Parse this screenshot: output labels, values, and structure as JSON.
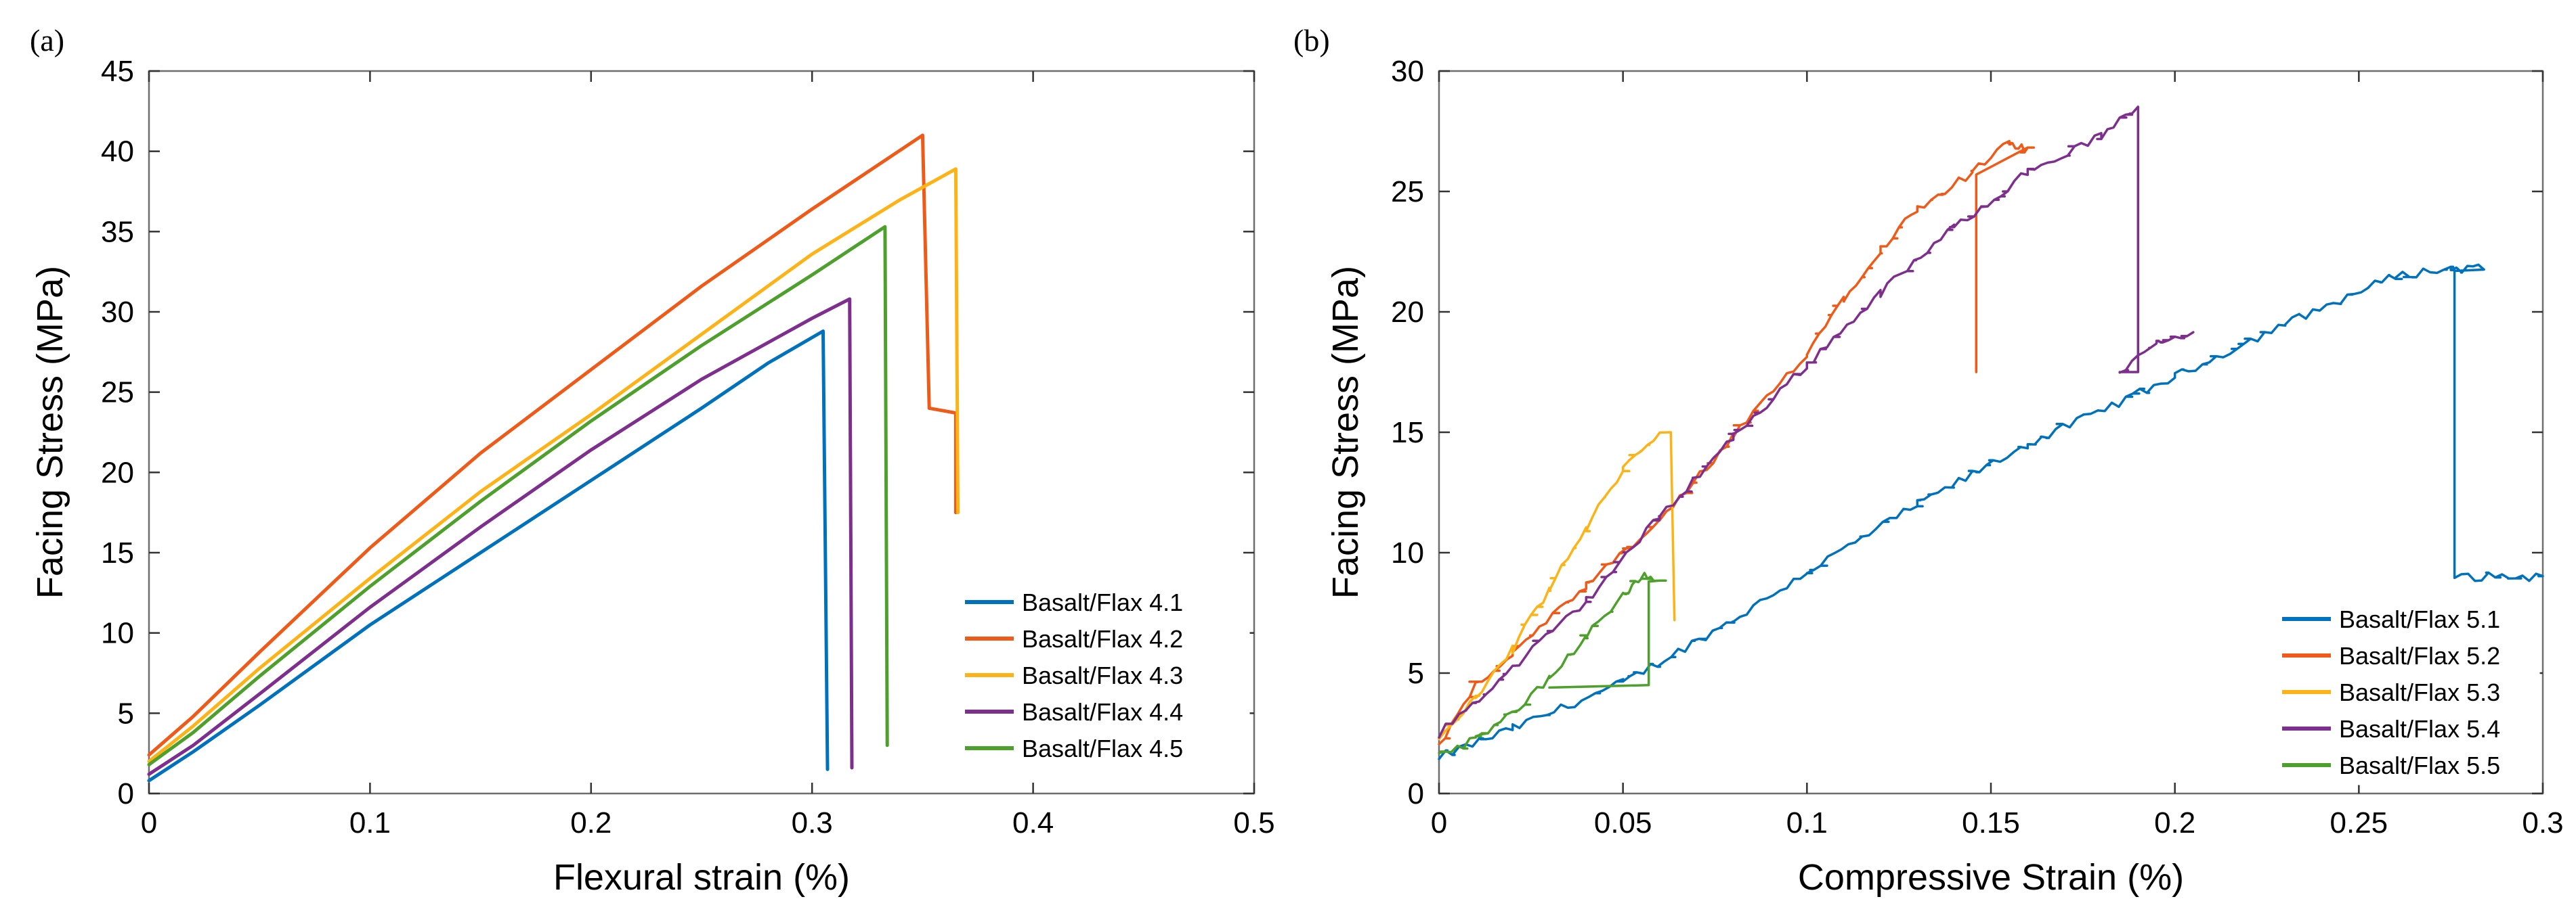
{
  "colors": {
    "blue": "#0072BD",
    "orange": "#F05A18",
    "yellow": "#FDB316",
    "purple": "#7E2F8E",
    "green": "#4DA02B"
  },
  "chart_data": [
    {
      "panel_label": "(a)",
      "type": "line",
      "title": "",
      "xlabel": "Flexural strain (%)",
      "ylabel": "Facing Stress (MPa)",
      "xlim": [
        0,
        0.5
      ],
      "ylim": [
        0,
        45
      ],
      "xticks": [
        0,
        0.1,
        0.2,
        0.3,
        0.4,
        0.5
      ],
      "xtick_labels": [
        "0",
        "0.1",
        "0.2",
        "0.3",
        "0.4",
        "0.5"
      ],
      "yticks": [
        0,
        5,
        10,
        15,
        20,
        25,
        30,
        35,
        40,
        45
      ],
      "ytick_labels": [
        "0",
        "5",
        "10",
        "15",
        "20",
        "25",
        "30",
        "35",
        "40",
        "45"
      ],
      "legend_position": "bottom-right",
      "series": [
        {
          "name": "Basalt/Flax 4.1",
          "color": "blue",
          "noisy": false,
          "points": [
            [
              0,
              0.8
            ],
            [
              0.02,
              2.6
            ],
            [
              0.05,
              5.5
            ],
            [
              0.1,
              10.5
            ],
            [
              0.15,
              15.0
            ],
            [
              0.2,
              19.5
            ],
            [
              0.25,
              24.0
            ],
            [
              0.28,
              26.8
            ],
            [
              0.305,
              28.8
            ],
            [
              0.307,
              1.5
            ]
          ]
        },
        {
          "name": "Basalt/Flax 4.2",
          "color": "orange",
          "noisy": false,
          "points": [
            [
              0,
              2.4
            ],
            [
              0.02,
              4.8
            ],
            [
              0.05,
              8.8
            ],
            [
              0.1,
              15.3
            ],
            [
              0.15,
              21.2
            ],
            [
              0.2,
              26.4
            ],
            [
              0.25,
              31.6
            ],
            [
              0.3,
              36.4
            ],
            [
              0.35,
              41.0
            ],
            [
              0.353,
              24.0
            ],
            [
              0.365,
              23.7
            ],
            [
              0.365,
              17.5
            ]
          ]
        },
        {
          "name": "Basalt/Flax 4.3",
          "color": "yellow",
          "noisy": false,
          "points": [
            [
              0,
              2.0
            ],
            [
              0.02,
              4.2
            ],
            [
              0.05,
              7.8
            ],
            [
              0.1,
              13.4
            ],
            [
              0.15,
              18.8
            ],
            [
              0.2,
              23.6
            ],
            [
              0.25,
              28.6
            ],
            [
              0.3,
              33.6
            ],
            [
              0.34,
              37.0
            ],
            [
              0.365,
              38.9
            ],
            [
              0.366,
              17.5
            ]
          ]
        },
        {
          "name": "Basalt/Flax 4.4",
          "color": "purple",
          "noisy": false,
          "points": [
            [
              0,
              1.2
            ],
            [
              0.02,
              3.0
            ],
            [
              0.05,
              6.2
            ],
            [
              0.1,
              11.6
            ],
            [
              0.15,
              16.6
            ],
            [
              0.2,
              21.4
            ],
            [
              0.25,
              25.8
            ],
            [
              0.3,
              29.6
            ],
            [
              0.317,
              30.8
            ],
            [
              0.318,
              1.6
            ]
          ]
        },
        {
          "name": "Basalt/Flax 4.5",
          "color": "green",
          "noisy": false,
          "points": [
            [
              0,
              1.8
            ],
            [
              0.02,
              3.8
            ],
            [
              0.05,
              7.3
            ],
            [
              0.1,
              12.9
            ],
            [
              0.15,
              18.2
            ],
            [
              0.2,
              23.2
            ],
            [
              0.25,
              27.9
            ],
            [
              0.3,
              32.3
            ],
            [
              0.333,
              35.3
            ],
            [
              0.334,
              3.0
            ]
          ]
        }
      ]
    },
    {
      "panel_label": "(b)",
      "type": "line",
      "title": "",
      "xlabel": "Compressive Strain (%)",
      "ylabel": "Facing Stress (MPa)",
      "xlim": [
        0,
        0.3
      ],
      "ylim": [
        0,
        30
      ],
      "xticks": [
        0,
        0.05,
        0.1,
        0.15,
        0.2,
        0.25,
        0.3
      ],
      "xtick_labels": [
        "0",
        "0.05",
        "0.1",
        "0.15",
        "0.2",
        "0.25",
        "0.3"
      ],
      "yticks": [
        0,
        5,
        10,
        15,
        20,
        25,
        30
      ],
      "ytick_labels": [
        "0",
        "5",
        "10",
        "15",
        "20",
        "25",
        "30"
      ],
      "legend_position": "bottom-right",
      "series": [
        {
          "name": "Basalt/Flax 5.1",
          "color": "blue",
          "noisy": true,
          "points": [
            [
              0,
              1.5
            ],
            [
              0.02,
              2.7
            ],
            [
              0.05,
              4.6
            ],
            [
              0.08,
              7.2
            ],
            [
              0.1,
              9.2
            ],
            [
              0.13,
              12.0
            ],
            [
              0.16,
              14.5
            ],
            [
              0.2,
              17.3
            ],
            [
              0.23,
              19.5
            ],
            [
              0.26,
              21.5
            ],
            [
              0.275,
              21.8
            ],
            [
              0.284,
              21.8
            ],
            [
              0.276,
              21.7
            ],
            [
              0.276,
              9.0
            ],
            [
              0.3,
              9.0
            ]
          ]
        },
        {
          "name": "Basalt/Flax 5.2",
          "color": "orange",
          "noisy": true,
          "points": [
            [
              0,
              2.0
            ],
            [
              0.01,
              4.5
            ],
            [
              0.02,
              5.8
            ],
            [
              0.04,
              8.6
            ],
            [
              0.06,
              11.3
            ],
            [
              0.08,
              14.8
            ],
            [
              0.1,
              18.3
            ],
            [
              0.11,
              20.6
            ],
            [
              0.12,
              22.6
            ],
            [
              0.13,
              24.3
            ],
            [
              0.145,
              25.8
            ],
            [
              0.155,
              27.0
            ],
            [
              0.16,
              26.7
            ],
            [
              0.146,
              25.7
            ],
            [
              0.146,
              17.5
            ]
          ]
        },
        {
          "name": "Basalt/Flax 5.3",
          "color": "yellow",
          "noisy": true,
          "points": [
            [
              0,
              2.2
            ],
            [
              0.01,
              4.0
            ],
            [
              0.02,
              6.0
            ],
            [
              0.03,
              8.5
            ],
            [
              0.04,
              11.0
            ],
            [
              0.05,
              13.5
            ],
            [
              0.06,
              15.0
            ],
            [
              0.063,
              15.0
            ],
            [
              0.064,
              7.2
            ]
          ]
        },
        {
          "name": "Basalt/Flax 5.4",
          "color": "purple",
          "noisy": true,
          "points": [
            [
              0,
              2.5
            ],
            [
              0.02,
              5.2
            ],
            [
              0.04,
              8.0
            ],
            [
              0.06,
              11.5
            ],
            [
              0.08,
              14.8
            ],
            [
              0.1,
              17.8
            ],
            [
              0.12,
              20.8
            ],
            [
              0.14,
              23.5
            ],
            [
              0.16,
              25.8
            ],
            [
              0.18,
              27.3
            ],
            [
              0.19,
              28.5
            ],
            [
              0.19,
              17.5
            ],
            [
              0.185,
              17.5
            ],
            [
              0.195,
              18.8
            ],
            [
              0.205,
              19.2
            ]
          ]
        },
        {
          "name": "Basalt/Flax 5.5",
          "color": "green",
          "noisy": true,
          "points": [
            [
              0,
              1.5
            ],
            [
              0.01,
              2.3
            ],
            [
              0.02,
              3.3
            ],
            [
              0.03,
              4.8
            ],
            [
              0.04,
              6.5
            ],
            [
              0.05,
              8.2
            ],
            [
              0.055,
              9.0
            ],
            [
              0.06,
              8.9
            ],
            [
              0.057,
              8.8
            ],
            [
              0.057,
              4.5
            ],
            [
              0.03,
              4.4
            ]
          ]
        }
      ]
    }
  ]
}
